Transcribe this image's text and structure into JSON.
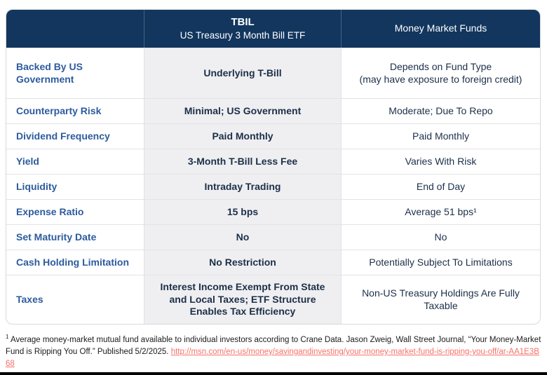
{
  "table": {
    "header": {
      "tbil_title": "TBIL",
      "tbil_subtitle": "US Treasury 3 Month Bill ETF",
      "mmf_title": "Money Market Funds"
    },
    "rows": [
      {
        "label": "Backed By US Government",
        "tbil": "Underlying T-Bill",
        "mmf": "Depends on Fund Type\n(may have exposure to foreign credit)"
      },
      {
        "label": "Counterparty Risk",
        "tbil": "Minimal; US Government",
        "mmf": "Moderate; Due To Repo"
      },
      {
        "label": "Dividend Frequency",
        "tbil": "Paid Monthly",
        "mmf": "Paid Monthly"
      },
      {
        "label": "Yield",
        "tbil": "3-Month T-Bill Less Fee",
        "mmf": "Varies With Risk"
      },
      {
        "label": "Liquidity",
        "tbil": "Intraday Trading",
        "mmf": "End of Day"
      },
      {
        "label": "Expense Ratio",
        "tbil": "15 bps",
        "mmf": "Average 51 bps¹"
      },
      {
        "label": "Set Maturity Date",
        "tbil": "No",
        "mmf": "No"
      },
      {
        "label": "Cash Holding Limitation",
        "tbil": "No Restriction",
        "mmf": "Potentially Subject To Limitations"
      },
      {
        "label": "Taxes",
        "tbil": "Interest Income Exempt From State\nand Local Taxes; ETF Structure\nEnables Tax Efficiency",
        "mmf": "Non-US Treasury Holdings Are Fully Taxable"
      }
    ]
  },
  "footnote": {
    "marker": "1",
    "text": " Average money-market mutual fund available to individual investors according to Crane Data. Jason Zweig, Wall Street Journal, “Your Money-Market Fund is Ripping You Off.” Published 5/2/2025. ",
    "link_text": "http://msn.com/en-us/money/savingandinvesting/your-money-market-fund-is-ripping-you-off/ar-AA1E3B68"
  },
  "colors": {
    "header_bg": "#12365E",
    "label_text": "#2D5B9D",
    "value_text": "#1C2F49",
    "tbil_column_bg": "#EFEFF1",
    "row_divider": "#E3E3E7",
    "table_border": "#D8D9DD",
    "link": "#F4716A"
  }
}
